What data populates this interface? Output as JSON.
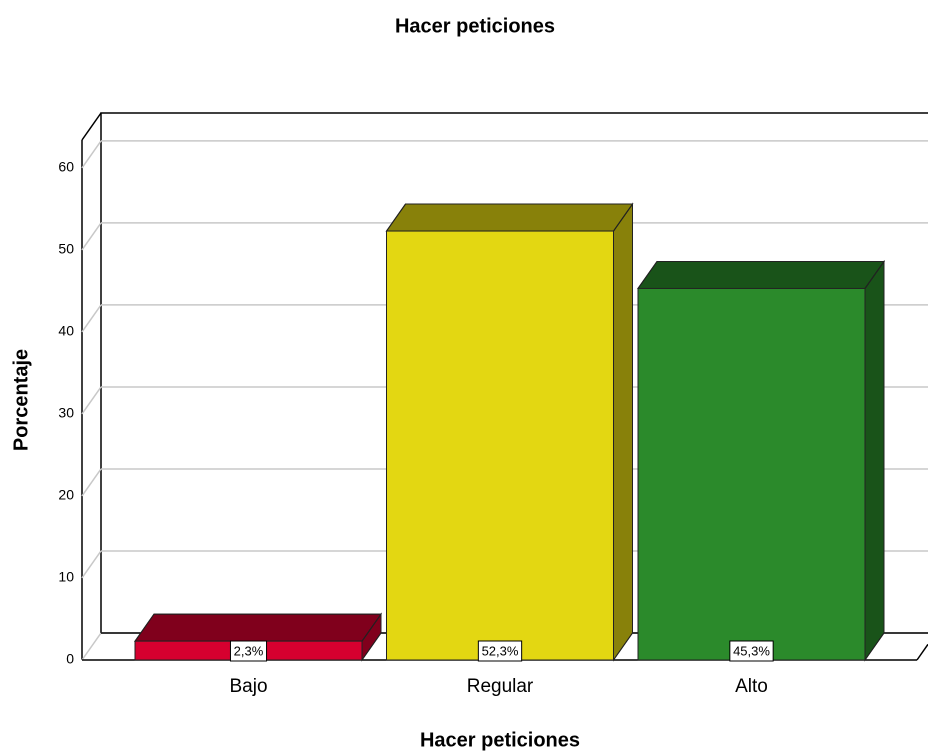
{
  "chart_data": {
    "type": "bar",
    "title": "Hacer peticiones",
    "x_label": "Hacer peticiones",
    "y_label": "Porcentaje",
    "categories": [
      "Bajo",
      "Regular",
      "Alto"
    ],
    "values": [
      2.3,
      52.3,
      45.3
    ],
    "value_labels": [
      "2,3%",
      "52,3%",
      "45,3%"
    ],
    "colors": [
      "#d6002f",
      "#e3d712",
      "#2b8a2b"
    ],
    "ylim": [
      0,
      63.4
    ],
    "yticks": [
      0,
      10,
      20,
      30,
      40,
      50,
      60
    ],
    "grid": true
  }
}
